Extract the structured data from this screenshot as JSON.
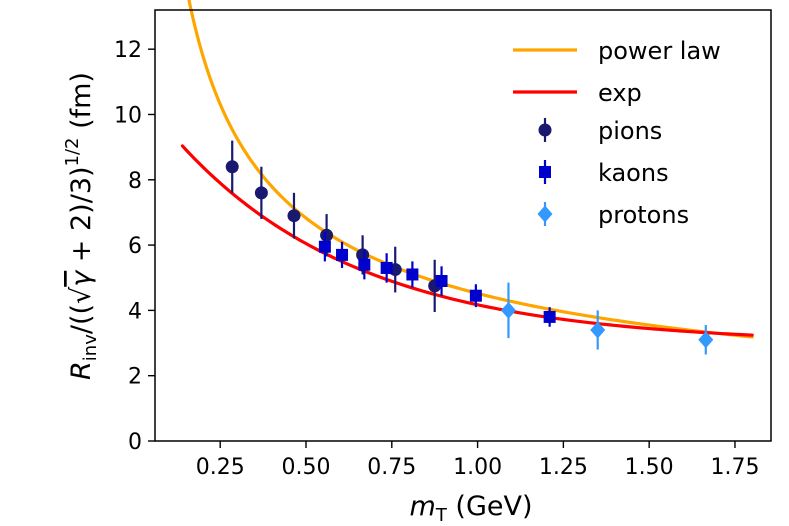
{
  "chart_data": {
    "type": "scatter",
    "title": "",
    "xlabel": {
      "main": "m",
      "sub": "T",
      "unit": " (GeV)"
    },
    "ylabel": {
      "main": "R",
      "sub": "inv",
      "middle": "/((√",
      "gamma": "γ",
      "plus": " + 2)/3)",
      "sup": "1/2",
      "unit": " (fm)"
    },
    "xlim": [
      0.06,
      1.855
    ],
    "ylim": [
      0,
      13.2
    ],
    "x_ticks": [
      0.25,
      0.5,
      0.75,
      1.0,
      1.25,
      1.5,
      1.75
    ],
    "x_tick_labels": [
      "0.25",
      "0.50",
      "0.75",
      "1.00",
      "1.25",
      "1.50",
      "1.75"
    ],
    "y_ticks": [
      0,
      2,
      4,
      6,
      8,
      10,
      12
    ],
    "y_tick_labels": [
      "0",
      "2",
      "4",
      "6",
      "8",
      "10",
      "12"
    ],
    "grid": false,
    "legend_position": "top-right",
    "fits": [
      {
        "name": "power law",
        "kind": "power",
        "color": "#ffa500",
        "a": 4.52,
        "b": -0.595,
        "x_range": [
          0.14,
          1.8
        ]
      },
      {
        "name": "exp",
        "kind": "exp",
        "color": "#ff0000",
        "a": 2.98,
        "b": 7.89,
        "c": 1.89,
        "x_range": [
          0.14,
          1.8
        ]
      }
    ],
    "series": [
      {
        "name": "pions",
        "marker": "circle",
        "color": "#191970",
        "x": [
          0.285,
          0.37,
          0.465,
          0.56,
          0.665,
          0.76,
          0.875
        ],
        "y": [
          8.4,
          7.6,
          6.9,
          6.3,
          5.7,
          5.25,
          4.75
        ],
        "yerr": [
          0.8,
          0.8,
          0.7,
          0.65,
          0.6,
          0.7,
          0.8
        ]
      },
      {
        "name": "kaons",
        "marker": "square",
        "color": "#0000cd",
        "x": [
          0.555,
          0.605,
          0.67,
          0.735,
          0.81,
          0.895,
          0.995,
          1.21
        ],
        "y": [
          5.95,
          5.7,
          5.4,
          5.3,
          5.1,
          4.9,
          4.45,
          3.8
        ],
        "yerr": [
          0.45,
          0.4,
          0.45,
          0.45,
          0.4,
          0.45,
          0.35,
          0.3
        ]
      },
      {
        "name": "protons",
        "marker": "diamond",
        "color": "#3399ff",
        "x": [
          1.09,
          1.35,
          1.665
        ],
        "y": [
          4.0,
          3.4,
          3.1
        ],
        "yerr": [
          0.85,
          0.6,
          0.45
        ]
      }
    ]
  }
}
